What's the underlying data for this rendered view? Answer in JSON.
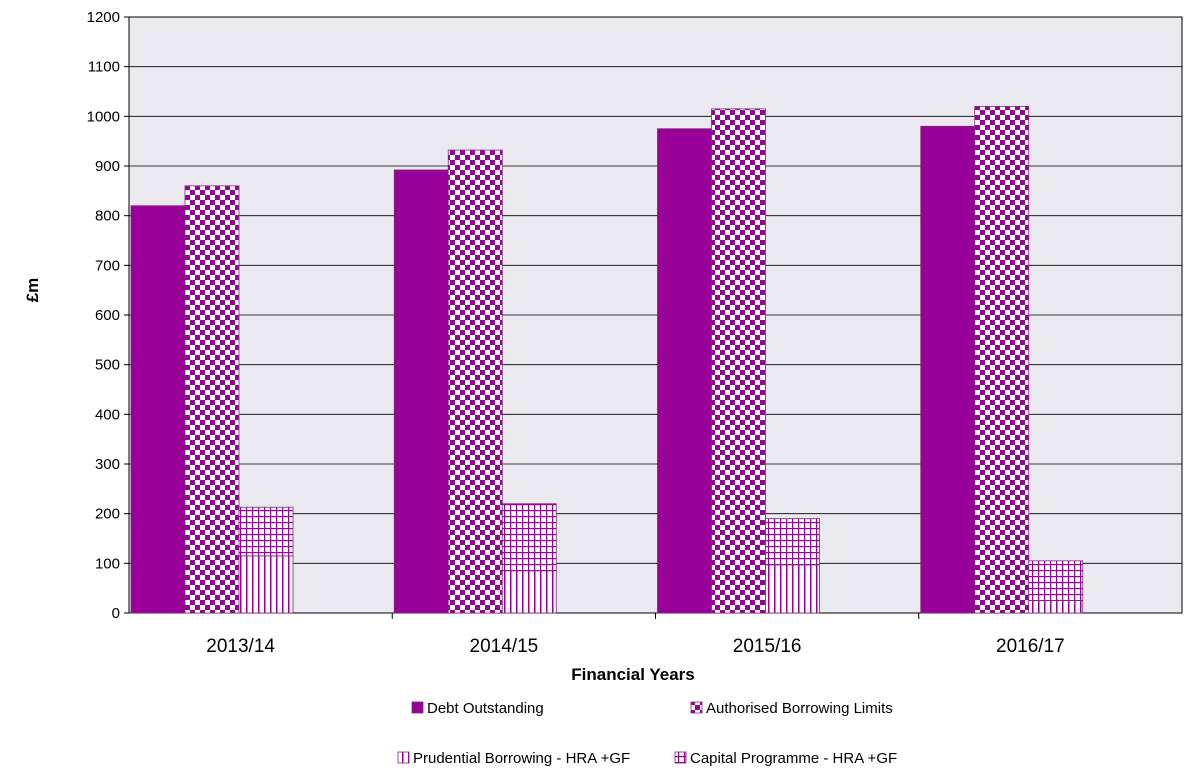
{
  "chart_data": {
    "type": "bar",
    "title": "",
    "xlabel": "Financial Years",
    "ylabel": "£m",
    "ylim": [
      0,
      1200
    ],
    "ytick_step": 100,
    "grid": true,
    "legend_position": "bottom",
    "categories": [
      "2013/14",
      "2014/15",
      "2015/16",
      "2016/17"
    ],
    "series": [
      {
        "name": "Debt Outstanding",
        "values": [
          820,
          892,
          975,
          980
        ],
        "color": "#990099",
        "pattern": "solid"
      },
      {
        "name": "Authorised Borrowing Limits",
        "values": [
          860,
          932,
          1015,
          1020
        ],
        "color": "#990099",
        "pattern": "checker"
      },
      {
        "name": "Prudential Borrowing - HRA +GF",
        "values": [
          115,
          85,
          97,
          25
        ],
        "color": "#990099",
        "pattern": "vertical",
        "stack": "hra"
      },
      {
        "name": "Capital Programme  - HRA +GF",
        "values": [
          98,
          135,
          93,
          80
        ],
        "color": "#990099",
        "pattern": "grid",
        "stack": "hra"
      }
    ],
    "colors": {
      "plot_background": "#ebe9f0",
      "gridline": "#000000",
      "accent": "#990099"
    }
  }
}
